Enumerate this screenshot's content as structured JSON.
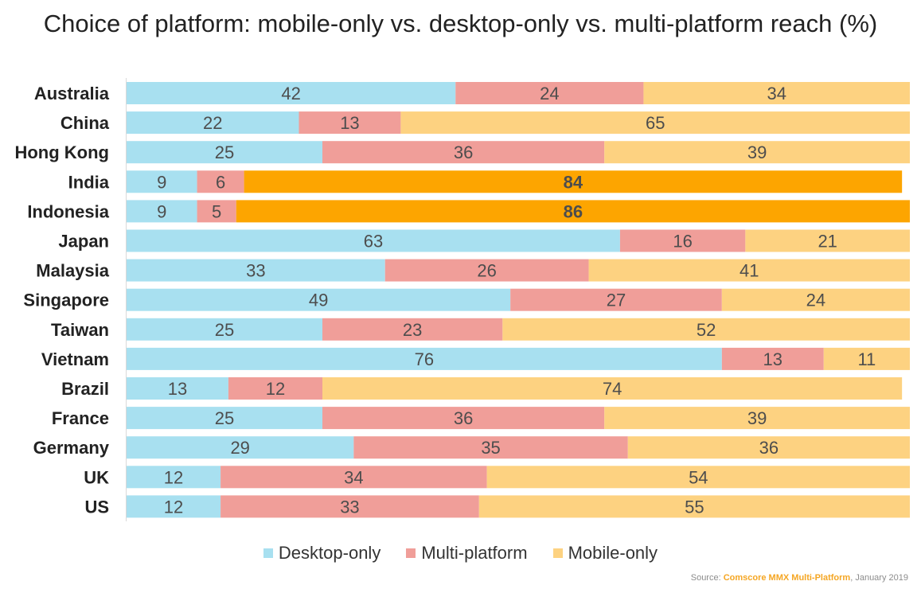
{
  "title": "Choice of platform: mobile-only vs. desktop-only vs. multi-platform reach (%)",
  "source": {
    "prefix": "Source: ",
    "highlight": "Comscore MMX Multi-Platform",
    "suffix": ", January 2019"
  },
  "colors": {
    "desktop": "#a8e0f0",
    "multi": "#f09e99",
    "mobile": "#fdd281",
    "mobile_highlight": "#fda500"
  },
  "chart_data": {
    "type": "bar",
    "orientation": "horizontal",
    "stacked": true,
    "categories": [
      "Australia",
      "China",
      "Hong Kong",
      "India",
      "Indonesia",
      "Japan",
      "Malaysia",
      "Singapore",
      "Taiwan",
      "Vietnam",
      "Brazil",
      "France",
      "Germany",
      "UK",
      "US"
    ],
    "series": [
      {
        "name": "Desktop-only",
        "values": [
          42,
          22,
          25,
          9,
          9,
          63,
          33,
          49,
          25,
          76,
          13,
          25,
          29,
          12,
          12
        ]
      },
      {
        "name": "Multi-platform",
        "values": [
          24,
          13,
          36,
          6,
          5,
          16,
          26,
          27,
          23,
          13,
          12,
          36,
          35,
          34,
          33
        ]
      },
      {
        "name": "Mobile-only",
        "values": [
          34,
          65,
          39,
          84,
          86,
          21,
          41,
          24,
          52,
          11,
          74,
          39,
          36,
          54,
          55
        ]
      }
    ],
    "highlighted_categories": [
      "India",
      "Indonesia"
    ],
    "legend_position": "bottom",
    "grid": false
  }
}
